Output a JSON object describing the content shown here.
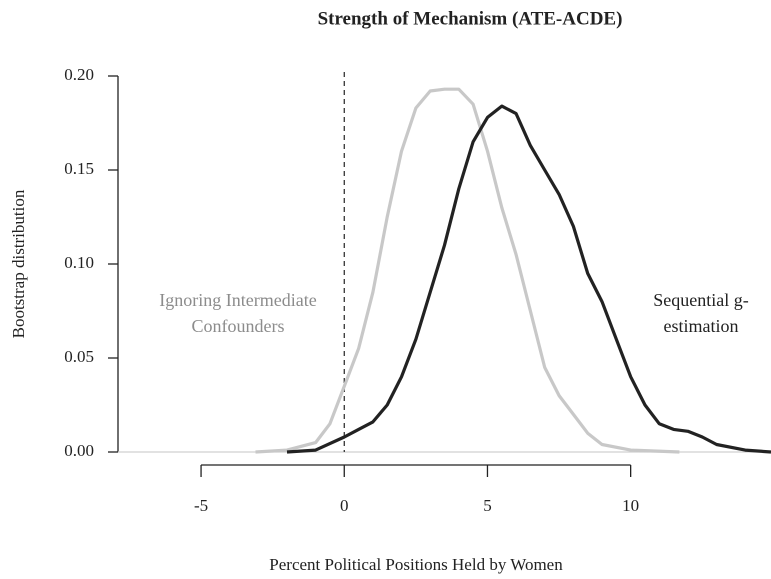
{
  "chart_data": {
    "type": "line",
    "title": "Strength of Mechanism (ATE-ACDE)",
    "xlabel": "Percent Political Positions Held by Women",
    "ylabel": "Bootstrap distribution",
    "xlim": [
      -7.9,
      14.9
    ],
    "ylim": [
      0,
      0.2
    ],
    "xticks": [
      -5,
      0,
      5,
      10
    ],
    "yticks": [
      {
        "value": 0,
        "label": "0.00"
      },
      {
        "value": 0.05,
        "label": "0.05"
      },
      {
        "value": 0.1,
        "label": "0.10"
      },
      {
        "value": 0.15,
        "label": "0.15"
      },
      {
        "value": 0.2,
        "label": "0.20"
      }
    ],
    "vline": 0,
    "series": [
      {
        "name": "Ignoring Intermediate Confounders",
        "color": "#c8c8c8",
        "x": [
          -3.1,
          -2,
          -1,
          -0.5,
          0,
          0.5,
          1,
          1.5,
          2,
          2.5,
          3,
          3.5,
          4,
          4.5,
          5,
          5.5,
          6,
          6.5,
          7,
          7.5,
          8,
          8.5,
          9,
          10,
          11.7
        ],
        "values": [
          0,
          0.001,
          0.005,
          0.015,
          0.035,
          0.055,
          0.085,
          0.125,
          0.16,
          0.183,
          0.192,
          0.193,
          0.193,
          0.185,
          0.16,
          0.13,
          0.105,
          0.075,
          0.045,
          0.03,
          0.02,
          0.01,
          0.004,
          0.001,
          0
        ]
      },
      {
        "name": "Sequential g-estimation",
        "color": "#222222",
        "x": [
          -2,
          -1,
          0,
          0.5,
          1,
          1.5,
          2,
          2.5,
          3,
          3.5,
          4,
          4.5,
          5,
          5.5,
          6,
          6.5,
          7,
          7.5,
          8,
          8.5,
          9,
          9.5,
          10,
          10.5,
          11,
          11.5,
          12,
          12.5,
          13,
          14,
          14.9
        ],
        "values": [
          0,
          0.001,
          0.008,
          0.012,
          0.016,
          0.025,
          0.04,
          0.06,
          0.085,
          0.11,
          0.14,
          0.165,
          0.178,
          0.184,
          0.18,
          0.163,
          0.15,
          0.137,
          0.12,
          0.095,
          0.08,
          0.06,
          0.04,
          0.025,
          0.015,
          0.012,
          0.011,
          0.008,
          0.004,
          0.001,
          0
        ]
      }
    ]
  }
}
